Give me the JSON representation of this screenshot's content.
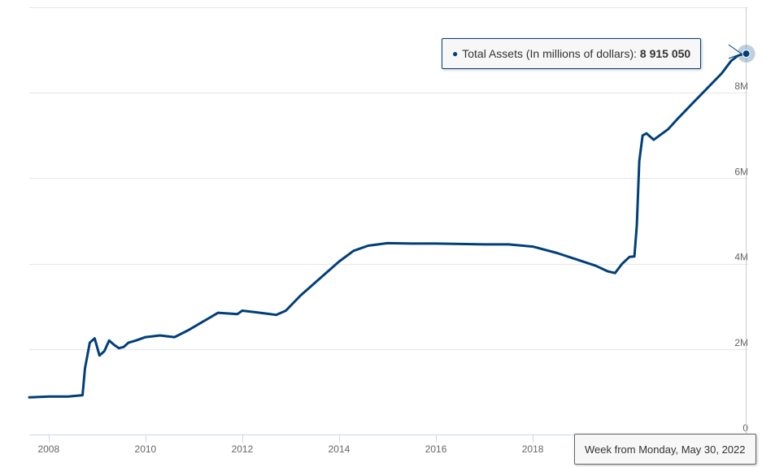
{
  "chart_data": {
    "type": "line",
    "title": "",
    "xlabel": "",
    "ylabel": "",
    "grid": true,
    "xlim": [
      2007.6,
      2022.45
    ],
    "ylim": [
      0,
      10000000
    ],
    "x_ticks": [
      2008,
      2010,
      2012,
      2014,
      2016,
      2018
    ],
    "x_tick_labels": [
      "2008",
      "2010",
      "2012",
      "2014",
      "2016",
      "2018"
    ],
    "y_ticks": [
      0,
      2000000,
      4000000,
      6000000,
      8000000
    ],
    "y_tick_labels": [
      "0",
      "2M",
      "4M",
      "6M",
      "8M"
    ],
    "series": [
      {
        "name": "Total Assets (In millions of dollars)",
        "color": "#003f7a",
        "x": [
          2007.6,
          2008.0,
          2008.4,
          2008.7,
          2008.75,
          2008.85,
          2008.95,
          2009.05,
          2009.15,
          2009.25,
          2009.35,
          2009.45,
          2009.55,
          2009.65,
          2009.8,
          2010.0,
          2010.3,
          2010.6,
          2010.9,
          2011.2,
          2011.5,
          2011.9,
          2012.0,
          2012.3,
          2012.5,
          2012.7,
          2012.9,
          2013.2,
          2013.5,
          2013.8,
          2014.0,
          2014.3,
          2014.6,
          2015.0,
          2015.5,
          2016.0,
          2016.5,
          2017.0,
          2017.5,
          2018.0,
          2018.5,
          2018.9,
          2019.3,
          2019.55,
          2019.7,
          2019.85,
          2020.0,
          2020.1,
          2020.15,
          2020.2,
          2020.27,
          2020.35,
          2020.5,
          2020.8,
          2021.0,
          2021.3,
          2021.6,
          2021.9,
          2022.1,
          2022.25,
          2022.41
        ],
        "values": [
          870000,
          890000,
          890000,
          920000,
          1550000,
          2150000,
          2250000,
          1850000,
          1950000,
          2200000,
          2100000,
          2020000,
          2050000,
          2150000,
          2200000,
          2280000,
          2320000,
          2280000,
          2450000,
          2650000,
          2850000,
          2820000,
          2900000,
          2860000,
          2830000,
          2800000,
          2900000,
          3250000,
          3550000,
          3850000,
          4050000,
          4300000,
          4420000,
          4480000,
          4470000,
          4470000,
          4460000,
          4450000,
          4450000,
          4400000,
          4250000,
          4100000,
          3950000,
          3820000,
          3780000,
          4000000,
          4160000,
          4170000,
          4900000,
          6400000,
          7000000,
          7050000,
          6900000,
          7150000,
          7400000,
          7750000,
          8100000,
          8450000,
          8750000,
          8880000,
          8915050
        ]
      }
    ],
    "tooltip": {
      "label": "Total Assets (In millions of dollars):",
      "value": "8 915 050",
      "x_label": "Week from Monday, May 30, 2022"
    }
  }
}
